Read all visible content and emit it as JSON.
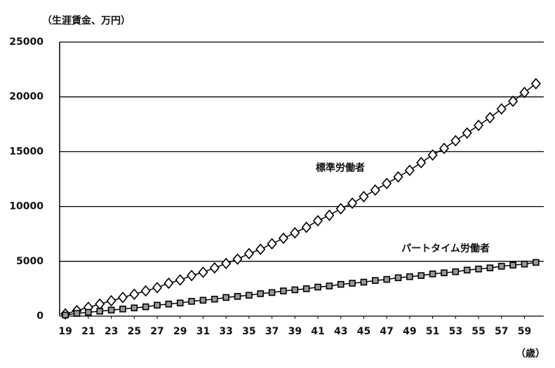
{
  "chart_data": {
    "type": "line",
    "y_label": "（生涯賃金、万円）",
    "x_label": "（歳）",
    "x": [
      19,
      20,
      21,
      22,
      23,
      24,
      25,
      26,
      27,
      28,
      29,
      30,
      31,
      32,
      33,
      34,
      35,
      36,
      37,
      38,
      39,
      40,
      41,
      42,
      43,
      44,
      45,
      46,
      47,
      48,
      49,
      50,
      51,
      52,
      53,
      54,
      55,
      56,
      57,
      58,
      59,
      60
    ],
    "xlim": [
      18.5,
      60.5
    ],
    "xticks": [
      19,
      21,
      23,
      25,
      27,
      29,
      31,
      33,
      35,
      37,
      39,
      41,
      43,
      45,
      47,
      49,
      51,
      53,
      55,
      57,
      59
    ],
    "ylim": [
      0,
      25000
    ],
    "yticks": [
      0,
      5000,
      10000,
      15000,
      20000,
      25000
    ],
    "grid": true,
    "series": [
      {
        "name": "標準労働者",
        "color": "#000000",
        "marker": "diamond",
        "values": [
          200,
          500,
          800,
          1100,
          1400,
          1700,
          2000,
          2300,
          2600,
          3000,
          3300,
          3700,
          4000,
          4400,
          4800,
          5200,
          5700,
          6100,
          6600,
          7100,
          7600,
          8100,
          8700,
          9200,
          9800,
          10300,
          10900,
          11500,
          12100,
          12700,
          13300,
          14000,
          14700,
          15300,
          16000,
          16700,
          17400,
          18100,
          18900,
          19600,
          20400,
          21200
        ]
      },
      {
        "name": "パートタイム労働者",
        "color": "#000000",
        "marker": "square",
        "values": [
          100,
          250,
          350,
          450,
          550,
          650,
          750,
          850,
          1000,
          1100,
          1200,
          1350,
          1450,
          1550,
          1700,
          1800,
          1900,
          2050,
          2150,
          2300,
          2400,
          2500,
          2650,
          2750,
          2900,
          3000,
          3100,
          3250,
          3350,
          3500,
          3600,
          3700,
          3850,
          3950,
          4050,
          4200,
          4300,
          4400,
          4550,
          4650,
          4750,
          4900
        ]
      }
    ]
  }
}
